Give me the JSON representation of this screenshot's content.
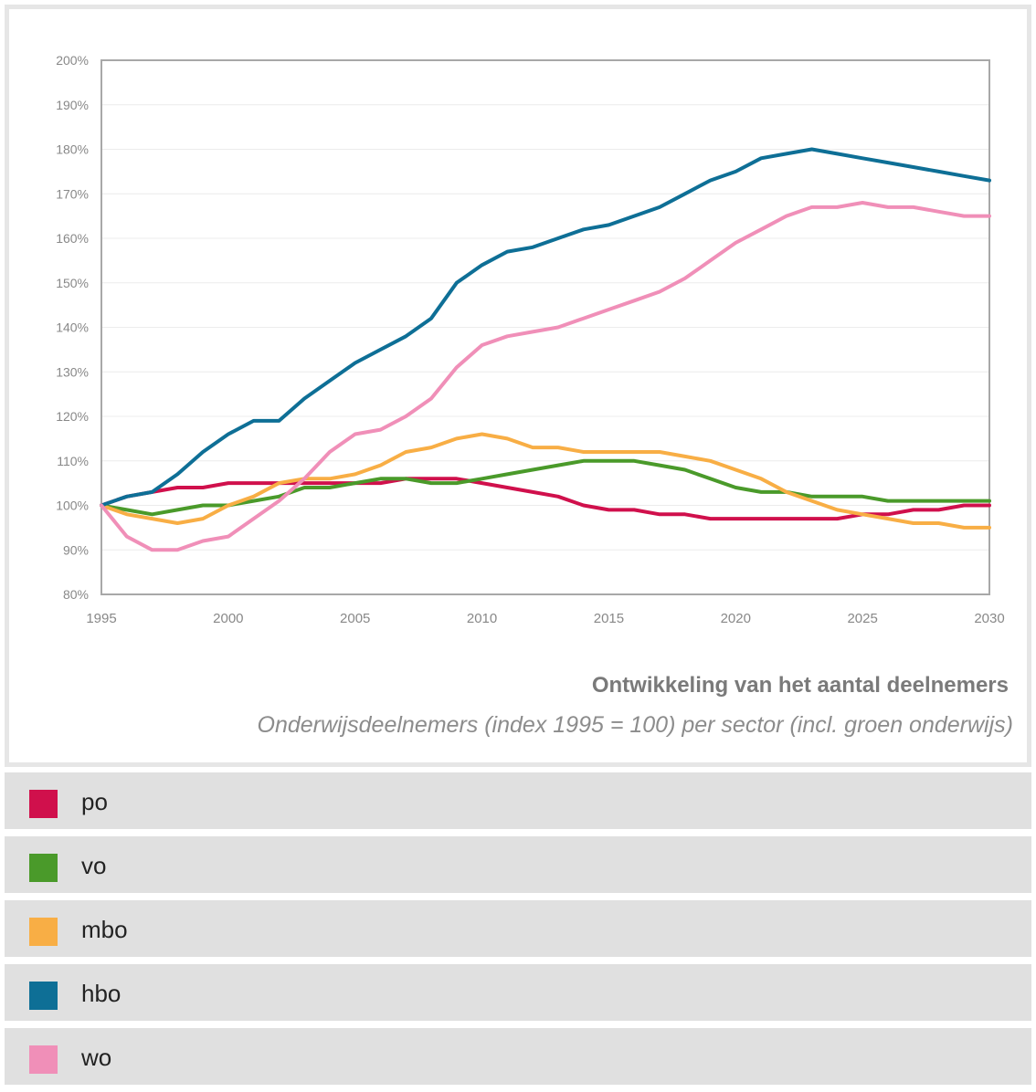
{
  "chart_data": {
    "type": "line",
    "title": "Ontwikkeling van het aantal deelnemers",
    "subtitle": "Onderwijsdeelnemers (index 1995 = 100) per sector (incl. groen onderwijs)",
    "xlim": [
      1995,
      2030
    ],
    "ylim": [
      80,
      200
    ],
    "x_ticks": [
      1995,
      2000,
      2005,
      2010,
      2015,
      2020,
      2025,
      2030
    ],
    "y_ticks": [
      80,
      90,
      100,
      110,
      120,
      130,
      140,
      150,
      160,
      170,
      180,
      190,
      200
    ],
    "y_tick_labels": [
      "80%",
      "90%",
      "100%",
      "110%",
      "120%",
      "130%",
      "140%",
      "150%",
      "160%",
      "170%",
      "180%",
      "190%",
      "200%"
    ],
    "grid": "horizontal",
    "legend_placement": "bottom",
    "x": [
      1995,
      1996,
      1997,
      1998,
      1999,
      2000,
      2001,
      2002,
      2003,
      2004,
      2005,
      2006,
      2007,
      2008,
      2009,
      2010,
      2011,
      2012,
      2013,
      2014,
      2015,
      2016,
      2017,
      2018,
      2019,
      2020,
      2021,
      2022,
      2023,
      2024,
      2025,
      2026,
      2027,
      2028,
      2029,
      2030
    ],
    "series": [
      {
        "name": "po",
        "color": "#d0104c",
        "values": [
          100,
          102,
          103,
          104,
          104,
          105,
          105,
          105,
          105,
          105,
          105,
          105,
          106,
          106,
          106,
          105,
          104,
          103,
          102,
          100,
          99,
          99,
          98,
          98,
          97,
          97,
          97,
          97,
          97,
          97,
          98,
          98,
          99,
          99,
          100,
          100
        ]
      },
      {
        "name": "vo",
        "color": "#4a9a2a",
        "values": [
          100,
          99,
          98,
          99,
          100,
          100,
          101,
          102,
          104,
          104,
          105,
          106,
          106,
          105,
          105,
          106,
          107,
          108,
          109,
          110,
          110,
          110,
          109,
          108,
          106,
          104,
          103,
          103,
          102,
          102,
          102,
          101,
          101,
          101,
          101,
          101
        ]
      },
      {
        "name": "mbo",
        "color": "#f8ae45",
        "values": [
          100,
          98,
          97,
          96,
          97,
          100,
          102,
          105,
          106,
          106,
          107,
          109,
          112,
          113,
          115,
          116,
          115,
          113,
          113,
          112,
          112,
          112,
          112,
          111,
          110,
          108,
          106,
          103,
          101,
          99,
          98,
          97,
          96,
          96,
          95,
          95
        ]
      },
      {
        "name": "hbo",
        "color": "#0e6f96",
        "values": [
          100,
          102,
          103,
          107,
          112,
          116,
          119,
          119,
          124,
          128,
          132,
          135,
          138,
          142,
          150,
          154,
          157,
          158,
          160,
          162,
          163,
          165,
          167,
          170,
          173,
          175,
          178,
          179,
          180,
          179,
          178,
          177,
          176,
          175,
          174,
          173
        ]
      },
      {
        "name": "wo",
        "color": "#f08fb8",
        "values": [
          100,
          93,
          90,
          90,
          92,
          93,
          97,
          101,
          106,
          112,
          116,
          117,
          120,
          124,
          131,
          136,
          138,
          139,
          140,
          142,
          144,
          146,
          148,
          151,
          155,
          159,
          162,
          165,
          167,
          167,
          168,
          167,
          167,
          166,
          165,
          165
        ]
      }
    ]
  }
}
